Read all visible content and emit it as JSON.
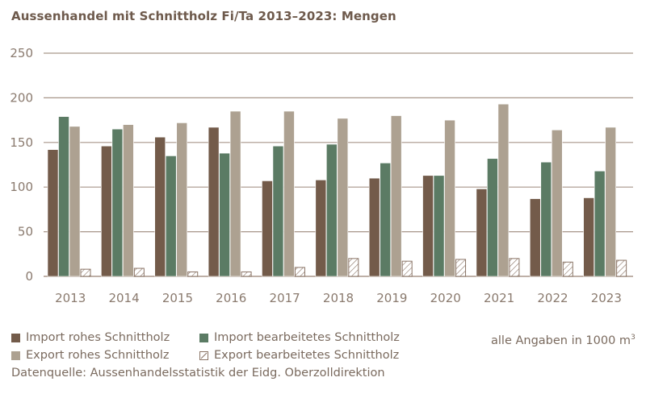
{
  "chart_data": {
    "type": "bar",
    "title": "Aussenhandel mit Schnittholz Fi/Ta 2013–2023: Mengen",
    "xlabel": "",
    "ylabel": "",
    "ylim": [
      0,
      250
    ],
    "yticks": [
      0,
      50,
      100,
      150,
      200,
      250
    ],
    "grid": true,
    "legend_position": "bottom",
    "categories": [
      "2013",
      "2014",
      "2015",
      "2016",
      "2017",
      "2018",
      "2019",
      "2020",
      "2021",
      "2022",
      "2023"
    ],
    "series": [
      {
        "name": "Import rohes Schnittholz",
        "color": "#735b4a",
        "pattern": "solid",
        "values": [
          142,
          146,
          156,
          167,
          107,
          108,
          110,
          113,
          98,
          87,
          88
        ]
      },
      {
        "name": "Import bearbeitetes Schnittholz",
        "color": "#5b7b64",
        "pattern": "solid",
        "values": [
          179,
          165,
          135,
          138,
          146,
          148,
          127,
          113,
          132,
          128,
          118
        ]
      },
      {
        "name": "Export rohes Schnittholz",
        "color": "#ada191",
        "pattern": "solid",
        "values": [
          168,
          170,
          172,
          185,
          185,
          177,
          180,
          175,
          193,
          164,
          167
        ]
      },
      {
        "name": "Export bearbeitetes Schnittholz",
        "color": "#8a7466",
        "pattern": "hatched",
        "values": [
          8,
          9,
          5,
          5,
          10,
          20,
          17,
          19,
          20,
          16,
          18
        ]
      }
    ],
    "units_note": "alle Angaben in 1000 m³",
    "source": "Datenquelle: Aussenhandelsstatistik der Eidg. Oberzolldirektion"
  },
  "legend": {
    "items": [
      "Import rohes Schnittholz",
      "Import bearbeitetes Schnittholz",
      "Export rohes Schnittholz",
      "Export bearbeitetes Schnittholz"
    ],
    "units_prefix": "alle Angaben in 1000 m",
    "units_sup": "3"
  },
  "source": "Datenquelle: Aussenhandelsstatistik der Eidg. Oberzolldirektion",
  "colors": {
    "grid": "#a8968a",
    "axis_text": "#8a7a6e",
    "title": "#6e5a4c"
  }
}
